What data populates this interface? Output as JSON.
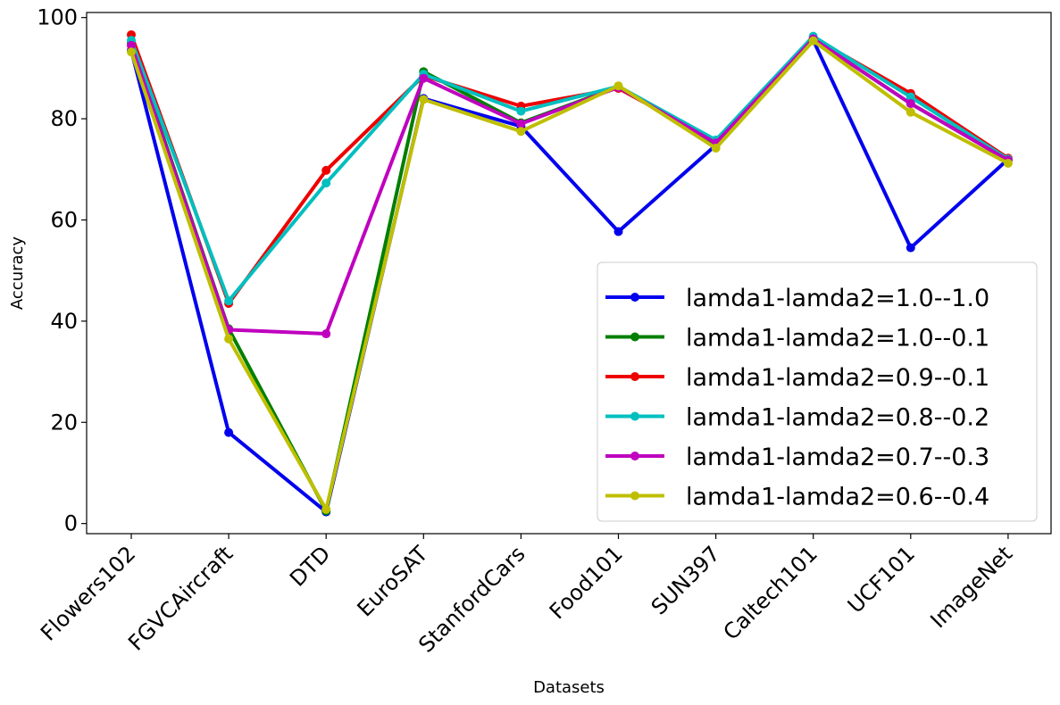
{
  "chart_data": {
    "type": "line",
    "title": "",
    "xlabel": "Datasets",
    "ylabel": "Accuracy",
    "ylim": [
      -2,
      101
    ],
    "yticks": [
      0,
      20,
      40,
      60,
      80,
      100
    ],
    "grid": false,
    "legend_position": "lower-right",
    "categories": [
      "Flowers102",
      "FGVCAircraft",
      "DTD",
      "EuroSAT",
      "StanfordCars",
      "Food101",
      "SUN397",
      "Caltech101",
      "UCF101",
      "ImageNet"
    ],
    "series": [
      {
        "name": "lamda1-lamda2=1.0--1.0",
        "color": "#0000ee",
        "values": [
          93.5,
          18.0,
          2.3,
          84.0,
          78.5,
          57.7,
          74.8,
          95.5,
          54.5,
          72.0
        ]
      },
      {
        "name": "lamda1-lamda2=1.0--0.1",
        "color": "#007f00",
        "values": [
          95.0,
          38.5,
          2.5,
          89.3,
          79.2,
          86.3,
          75.0,
          95.8,
          83.0,
          71.8
        ]
      },
      {
        "name": "lamda1-lamda2=0.9--0.1",
        "color": "#ee0000",
        "values": [
          96.6,
          43.5,
          69.8,
          88.5,
          82.5,
          86.0,
          75.5,
          96.0,
          85.0,
          72.2
        ]
      },
      {
        "name": "lamda1-lamda2=0.8--0.2",
        "color": "#00bfbf",
        "values": [
          95.5,
          44.0,
          67.3,
          88.8,
          81.5,
          86.4,
          75.8,
          96.3,
          84.3,
          72.0
        ]
      },
      {
        "name": "lamda1-lamda2=0.7--0.3",
        "color": "#bf00bf",
        "values": [
          94.5,
          38.3,
          37.5,
          88.0,
          79.0,
          86.2,
          75.2,
          95.8,
          83.0,
          71.8
        ]
      },
      {
        "name": "lamda1-lamda2=0.6--0.4",
        "color": "#bfbf00",
        "values": [
          93.2,
          36.5,
          2.8,
          83.8,
          77.5,
          86.5,
          74.2,
          95.4,
          81.3,
          71.2
        ]
      }
    ]
  }
}
